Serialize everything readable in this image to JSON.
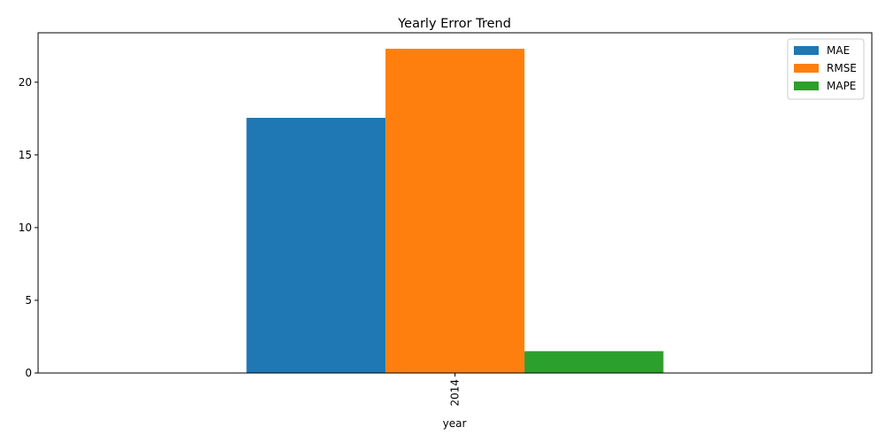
{
  "chart_data": {
    "type": "bar",
    "title": "Yearly Error Trend",
    "xlabel": "year",
    "ylabel": "",
    "categories": [
      "2014"
    ],
    "series": [
      {
        "name": "MAE",
        "values": [
          17.55
        ],
        "color": "#1f77b4"
      },
      {
        "name": "RMSE",
        "values": [
          22.3
        ],
        "color": "#ff7f0e"
      },
      {
        "name": "MAPE",
        "values": [
          1.5
        ],
        "color": "#2ca02c"
      }
    ],
    "ylim": [
      0,
      23.4
    ],
    "yticks": [
      0,
      5,
      10,
      15,
      20
    ],
    "grid": false,
    "legend_position": "top-right",
    "xtick_rotation": 90
  }
}
